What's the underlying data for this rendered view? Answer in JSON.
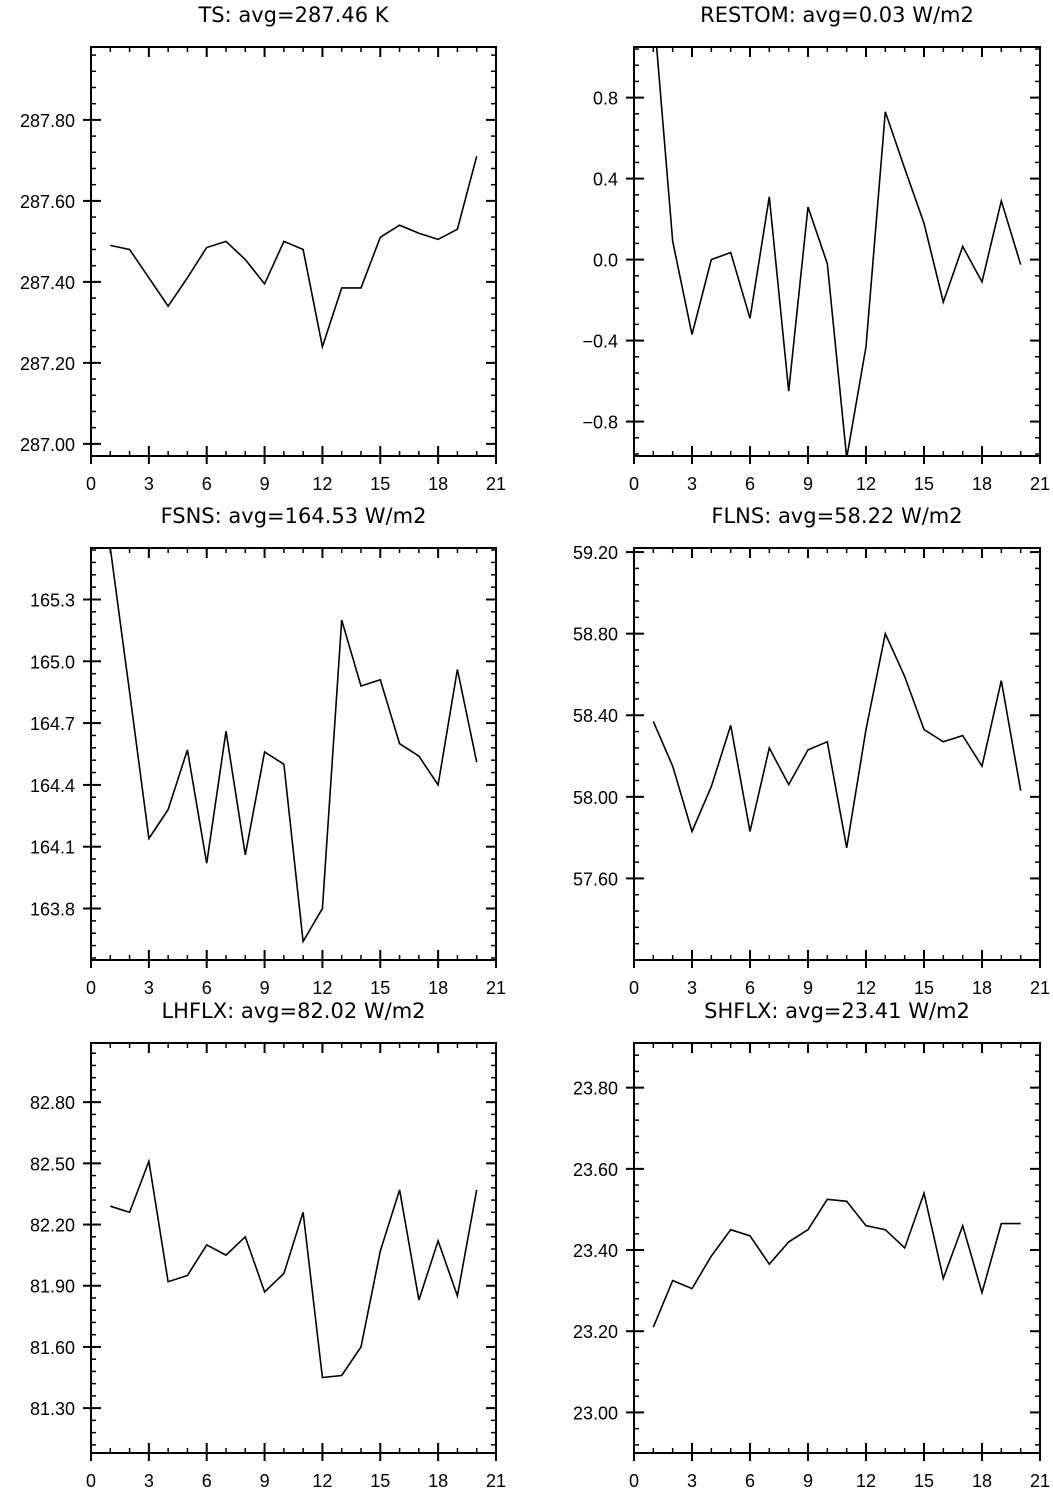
{
  "chart_data": [
    {
      "type": "line",
      "title": "TS: avg=287.46 K",
      "xlim": [
        0,
        21
      ],
      "ylim": [
        286.97,
        287.98
      ],
      "xticks": [
        0,
        3,
        6,
        9,
        12,
        15,
        18,
        21
      ],
      "yticks": [
        287.0,
        287.2,
        287.4,
        287.6,
        287.8
      ],
      "yticklabels": [
        "287.00",
        "287.20",
        "287.40",
        "287.60",
        "287.80"
      ],
      "grid": false,
      "x": [
        1,
        2,
        3,
        4,
        5,
        6,
        7,
        8,
        9,
        10,
        11,
        12,
        13,
        14,
        15,
        16,
        17,
        18,
        19,
        20
      ],
      "y": [
        287.49,
        287.48,
        287.41,
        287.34,
        287.41,
        287.485,
        287.5,
        287.455,
        287.395,
        287.5,
        287.48,
        287.24,
        287.385,
        287.385,
        287.51,
        287.54,
        287.52,
        287.505,
        287.53,
        287.71
      ]
    },
    {
      "type": "line",
      "title": "RESTOM: avg=0.03 W/m2",
      "xlim": [
        0,
        21
      ],
      "ylim": [
        -0.97,
        1.05
      ],
      "xticks": [
        0,
        3,
        6,
        9,
        12,
        15,
        18,
        21
      ],
      "yticks": [
        -0.8,
        -0.4,
        0.0,
        0.4,
        0.8
      ],
      "yticklabels": [
        "−0.8",
        "−0.4",
        "0.0",
        "0.4",
        "0.8"
      ],
      "grid": false,
      "x": [
        1,
        2,
        3,
        4,
        5,
        6,
        7,
        8,
        9,
        10,
        11,
        12,
        13,
        14,
        15,
        16,
        17,
        18,
        19,
        20
      ],
      "y": [
        1.25,
        0.09,
        -0.37,
        0.0,
        0.035,
        -0.29,
        0.31,
        -0.65,
        0.26,
        -0.02,
        -0.98,
        -0.43,
        0.73,
        0.45,
        0.18,
        -0.21,
        0.065,
        -0.11,
        0.29,
        -0.025
      ]
    },
    {
      "type": "line",
      "title": "FSNS: avg=164.53 W/m2",
      "xlim": [
        0,
        21
      ],
      "ylim": [
        163.55,
        165.55
      ],
      "xticks": [
        0,
        3,
        6,
        9,
        12,
        15,
        18,
        21
      ],
      "yticks": [
        163.8,
        164.1,
        164.4,
        164.7,
        165.0,
        165.3
      ],
      "yticklabels": [
        "163.8",
        "164.1",
        "164.4",
        "164.7",
        "165.0",
        "165.3"
      ],
      "grid": false,
      "x": [
        1,
        2,
        3,
        4,
        5,
        6,
        7,
        8,
        9,
        10,
        11,
        12,
        13,
        14,
        15,
        16,
        17,
        18,
        19,
        20
      ],
      "y": [
        165.55,
        164.85,
        164.14,
        164.28,
        164.57,
        164.02,
        164.66,
        164.06,
        164.56,
        164.5,
        163.64,
        163.8,
        165.2,
        164.88,
        164.91,
        164.6,
        164.54,
        164.4,
        164.96,
        164.51
      ]
    },
    {
      "type": "line",
      "title": "FLNS: avg=58.22 W/m2",
      "xlim": [
        0,
        21
      ],
      "ylim": [
        57.2,
        59.22
      ],
      "xticks": [
        0,
        3,
        6,
        9,
        12,
        15,
        18,
        21
      ],
      "yticks": [
        57.6,
        58.0,
        58.4,
        58.8,
        59.2
      ],
      "yticklabels": [
        "57.60",
        "58.00",
        "58.40",
        "58.80",
        "59.20"
      ],
      "grid": false,
      "x": [
        1,
        2,
        3,
        4,
        5,
        6,
        7,
        8,
        9,
        10,
        11,
        12,
        13,
        14,
        15,
        16,
        17,
        18,
        19,
        20
      ],
      "y": [
        58.37,
        58.15,
        57.83,
        58.05,
        58.35,
        57.83,
        58.24,
        58.06,
        58.23,
        58.27,
        57.75,
        58.33,
        58.8,
        58.59,
        58.33,
        58.27,
        58.3,
        58.15,
        58.57,
        58.03
      ]
    },
    {
      "type": "line",
      "title": "LHFLX: avg=82.02 W/m2",
      "xlim": [
        0,
        21
      ],
      "ylim": [
        81.08,
        83.09
      ],
      "xticks": [
        0,
        3,
        6,
        9,
        12,
        15,
        18,
        21
      ],
      "yticks": [
        81.3,
        81.6,
        81.9,
        82.2,
        82.5,
        82.8
      ],
      "yticklabels": [
        "81.30",
        "81.60",
        "81.90",
        "82.20",
        "82.50",
        "82.80"
      ],
      "grid": false,
      "x": [
        1,
        2,
        3,
        4,
        5,
        6,
        7,
        8,
        9,
        10,
        11,
        12,
        13,
        14,
        15,
        16,
        17,
        18,
        19,
        20
      ],
      "y": [
        82.29,
        82.26,
        82.51,
        81.92,
        81.95,
        82.1,
        82.05,
        82.14,
        81.87,
        81.96,
        82.26,
        81.45,
        81.46,
        81.6,
        82.07,
        82.37,
        81.83,
        82.12,
        81.85,
        82.37
      ]
    },
    {
      "type": "line",
      "title": "SHFLX: avg=23.41 W/m2",
      "xlim": [
        0,
        21
      ],
      "ylim": [
        22.9,
        23.91
      ],
      "xticks": [
        0,
        3,
        6,
        9,
        12,
        15,
        18,
        21
      ],
      "yticks": [
        23.0,
        23.2,
        23.4,
        23.6,
        23.8
      ],
      "yticklabels": [
        "23.00",
        "23.20",
        "23.40",
        "23.60",
        "23.80"
      ],
      "grid": false,
      "x": [
        1,
        2,
        3,
        4,
        5,
        6,
        7,
        8,
        9,
        10,
        11,
        12,
        13,
        14,
        15,
        16,
        17,
        18,
        19,
        20
      ],
      "y": [
        23.21,
        23.325,
        23.305,
        23.385,
        23.45,
        23.435,
        23.365,
        23.42,
        23.45,
        23.525,
        23.52,
        23.46,
        23.45,
        23.405,
        23.54,
        23.33,
        23.46,
        23.295,
        23.465,
        23.465
      ]
    }
  ]
}
